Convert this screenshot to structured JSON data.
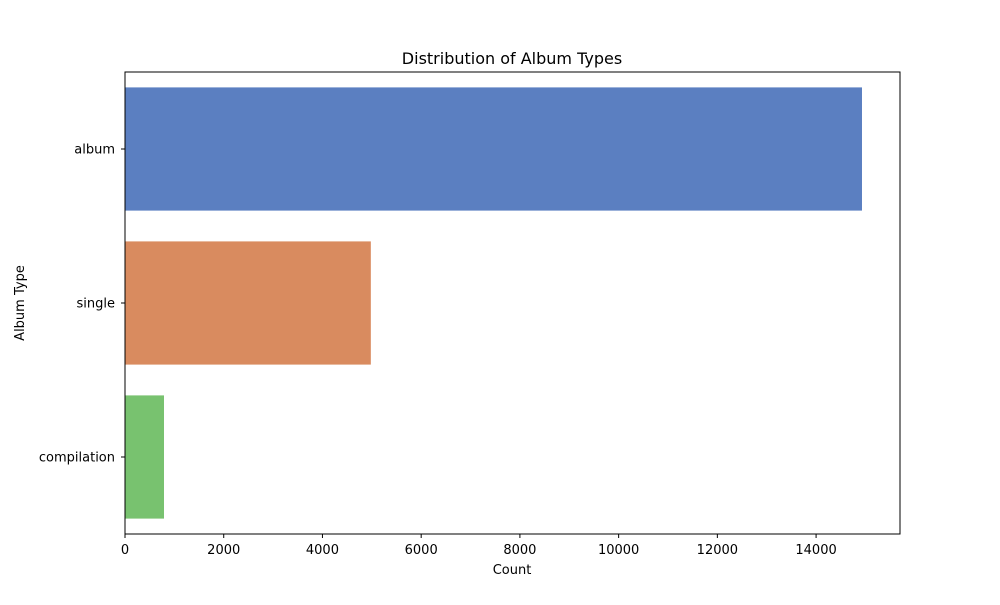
{
  "chart_data": {
    "type": "bar",
    "orientation": "horizontal",
    "title": "Distribution of Album Types",
    "xlabel": "Count",
    "ylabel": "Album Type",
    "categories": [
      "album",
      "single",
      "compilation"
    ],
    "values": [
      14930,
      4980,
      790
    ],
    "colors": [
      "#5b7fc1",
      "#d98b5f",
      "#78c26f"
    ],
    "xlim": [
      0,
      15700
    ],
    "xticks": [
      0,
      2000,
      4000,
      6000,
      8000,
      10000,
      12000,
      14000
    ],
    "grid": false,
    "legend": "none"
  }
}
